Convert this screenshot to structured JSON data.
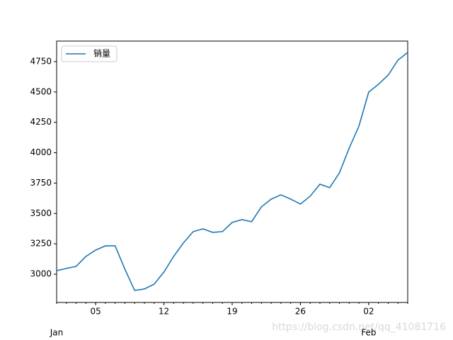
{
  "chart_data": {
    "type": "line",
    "x": [
      "01-01",
      "01-02",
      "01-03",
      "01-04",
      "01-05",
      "01-06",
      "01-07",
      "01-08",
      "01-09",
      "01-10",
      "01-11",
      "01-12",
      "01-13",
      "01-14",
      "01-15",
      "01-16",
      "01-17",
      "01-18",
      "01-19",
      "01-20",
      "01-21",
      "01-22",
      "01-23",
      "01-24",
      "01-25",
      "01-26",
      "01-27",
      "01-28",
      "01-29",
      "01-30",
      "01-31",
      "02-01",
      "02-02",
      "02-03",
      "02-04",
      "02-05",
      "02-06"
    ],
    "series": [
      {
        "name": "销量",
        "color": "#1f77b4",
        "values": [
          3029,
          3047,
          3064,
          3146,
          3198,
          3233,
          3233,
          3041,
          2866,
          2878,
          2918,
          3017,
          3146,
          3257,
          3350,
          3373,
          3344,
          3350,
          3426,
          3449,
          3432,
          3554,
          3618,
          3653,
          3618,
          3577,
          3642,
          3741,
          3712,
          3834,
          4038,
          4219,
          4499,
          4563,
          4639,
          4762,
          4826
        ]
      }
    ],
    "xticks": [
      {
        "value": "01-05",
        "label": "05"
      },
      {
        "value": "01-12",
        "label": "12"
      },
      {
        "value": "01-19",
        "label": "19"
      },
      {
        "value": "01-26",
        "label": "26"
      },
      {
        "value": "02-02",
        "label": "02"
      }
    ],
    "month_ticks": [
      {
        "value": "01-01",
        "label": "Jan"
      },
      {
        "value": "02-02",
        "label": "Feb"
      }
    ],
    "ylim": [
      2767,
      4919
    ],
    "yticks": [
      3000,
      3250,
      3500,
      3750,
      4000,
      4250,
      4500,
      4750
    ],
    "legend": "upper left",
    "watermark": "https://blog.csdn.net/qq_41081716"
  }
}
